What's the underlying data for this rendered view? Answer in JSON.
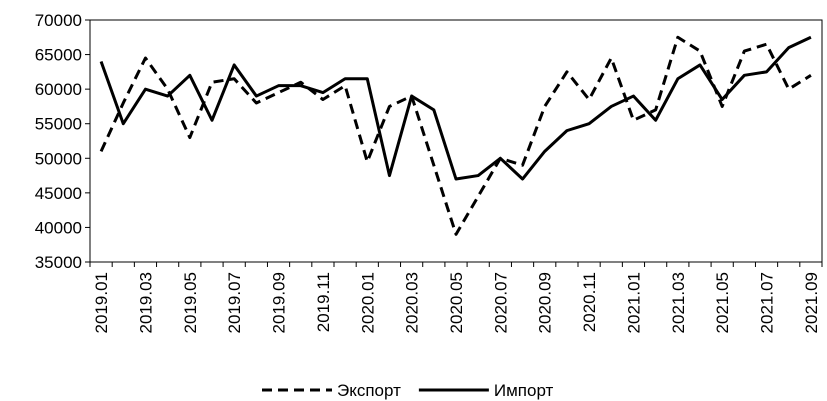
{
  "chart_data": {
    "type": "line",
    "categories": [
      "2019.01",
      null,
      "2019.03",
      null,
      "2019.05",
      null,
      "2019.07",
      null,
      "2019.09",
      null,
      "2019.11",
      null,
      "2020.01",
      null,
      "2020.03",
      null,
      "2020.05",
      null,
      "2020.07",
      null,
      "2020.09",
      null,
      "2020.11",
      null,
      "2021.01",
      null,
      "2021.03",
      null,
      "2021.05",
      null,
      "2021.07",
      null,
      "2021.09"
    ],
    "series": [
      {
        "name": "Экспорт",
        "color": "#000000",
        "dash": true,
        "values": [
          51000,
          58000,
          64500,
          60000,
          53000,
          61000,
          61500,
          58000,
          59500,
          61000,
          58500,
          60500,
          49500,
          57500,
          59000,
          49000,
          39000,
          44500,
          50000,
          49000,
          57500,
          62500,
          58500,
          64500,
          55500,
          57000,
          67500,
          65500,
          57500,
          65500,
          66500,
          60000,
          62000
        ]
      },
      {
        "name": "Импорт",
        "color": "#000000",
        "dash": false,
        "values": [
          64000,
          55000,
          60000,
          59000,
          62000,
          55500,
          63500,
          59000,
          60500,
          60500,
          59500,
          61500,
          61500,
          47500,
          59000,
          57000,
          47000,
          47500,
          50000,
          47000,
          51000,
          54000,
          55000,
          57500,
          59000,
          55500,
          61500,
          63500,
          58500,
          62000,
          62500,
          66000,
          67500
        ]
      }
    ],
    "ylim": [
      35000,
      70000
    ],
    "yticks": [
      35000,
      40000,
      45000,
      50000,
      55000,
      60000,
      65000,
      70000
    ],
    "grid": false,
    "legend": "bottom"
  }
}
